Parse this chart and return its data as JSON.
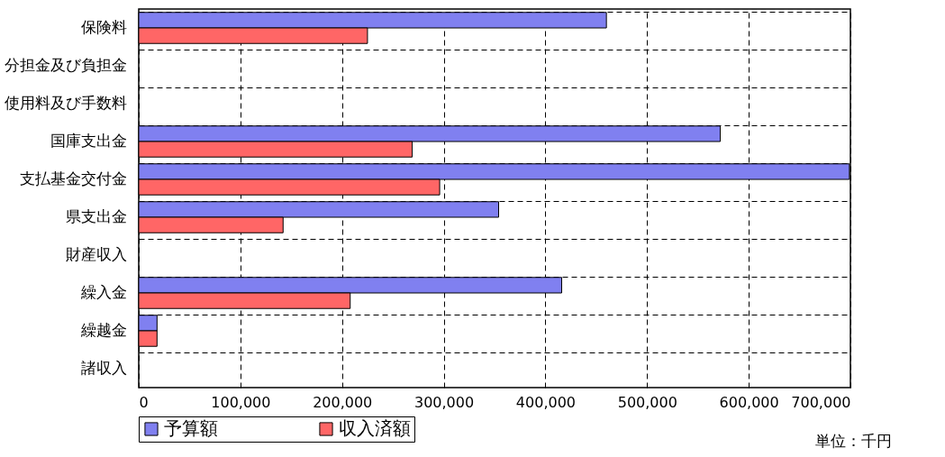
{
  "chart_data": {
    "type": "bar",
    "orientation": "horizontal",
    "categories": [
      "保険料",
      "分担金及び負担金",
      "使用料及び手数料",
      "国庫支出金",
      "支払基金交付金",
      "県支出金",
      "財産収入",
      "繰入金",
      "繰越金",
      "諸収入"
    ],
    "series": [
      {
        "name": "予算額",
        "color": "#8080f0",
        "values": [
          460000,
          null,
          null,
          572000,
          699000,
          354000,
          null,
          416000,
          18000,
          null
        ]
      },
      {
        "name": "収入済額",
        "color": "#ff6666",
        "values": [
          225000,
          null,
          null,
          269000,
          296000,
          142000,
          null,
          208000,
          18000,
          null
        ]
      }
    ],
    "xlim": [
      0,
      700000
    ],
    "xticks": [
      0,
      {
        "value": 100000,
        "label": "100,000"
      },
      {
        "value": 200000,
        "label": "200,000"
      },
      {
        "value": 300000,
        "label": "300,000"
      },
      {
        "value": 400000,
        "label": "400,000"
      },
      {
        "value": 500000,
        "label": "500,000"
      },
      {
        "value": 600000,
        "label": "600,000"
      },
      {
        "value": 700000,
        "label": "700,000"
      }
    ],
    "grid": true,
    "legend": "bottom",
    "annotations": [
      "単位：千円"
    ]
  }
}
